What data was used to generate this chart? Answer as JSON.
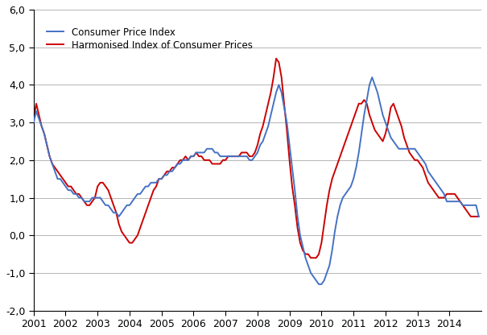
{
  "ylim": [
    -2.0,
    6.0
  ],
  "yticks": [
    -2.0,
    -1.0,
    0.0,
    1.0,
    2.0,
    3.0,
    4.0,
    5.0,
    6.0
  ],
  "ytick_labels": [
    "-2,0",
    "-1,0",
    "0,0",
    "1,0",
    "2,0",
    "3,0",
    "4,0",
    "5,0",
    "6,0"
  ],
  "xtick_years": [
    2001,
    2002,
    2003,
    2004,
    2005,
    2006,
    2007,
    2008,
    2009,
    2010,
    2011,
    2012,
    2013,
    2014
  ],
  "cpi_color": "#4472C4",
  "hicp_color": "#CC0000",
  "line_width": 1.4,
  "cpi_label": "Consumer Price Index",
  "hicp_label": "Harmonised Index of Consumer Prices",
  "cpi_data": [
    3.0,
    3.3,
    3.1,
    2.9,
    2.7,
    2.4,
    2.1,
    1.9,
    1.7,
    1.5,
    1.5,
    1.4,
    1.3,
    1.2,
    1.2,
    1.1,
    1.1,
    1.0,
    1.0,
    0.9,
    0.9,
    0.9,
    1.0,
    1.0,
    1.0,
    1.0,
    0.9,
    0.8,
    0.8,
    0.7,
    0.6,
    0.6,
    0.5,
    0.6,
    0.7,
    0.8,
    0.8,
    0.9,
    1.0,
    1.1,
    1.1,
    1.2,
    1.3,
    1.3,
    1.4,
    1.4,
    1.4,
    1.5,
    1.5,
    1.6,
    1.6,
    1.7,
    1.7,
    1.8,
    1.9,
    1.9,
    2.0,
    2.0,
    2.0,
    2.1,
    2.1,
    2.2,
    2.2,
    2.2,
    2.2,
    2.3,
    2.3,
    2.3,
    2.2,
    2.2,
    2.1,
    2.1,
    2.1,
    2.1,
    2.1,
    2.1,
    2.1,
    2.1,
    2.1,
    2.1,
    2.1,
    2.0,
    2.0,
    2.1,
    2.2,
    2.4,
    2.5,
    2.7,
    2.9,
    3.2,
    3.5,
    3.8,
    4.0,
    3.8,
    3.4,
    3.0,
    2.4,
    1.8,
    1.2,
    0.5,
    0.0,
    -0.3,
    -0.6,
    -0.8,
    -1.0,
    -1.1,
    -1.2,
    -1.3,
    -1.3,
    -1.2,
    -1.0,
    -0.8,
    -0.4,
    0.1,
    0.5,
    0.8,
    1.0,
    1.1,
    1.2,
    1.3,
    1.5,
    1.8,
    2.2,
    2.7,
    3.2,
    3.6,
    4.0,
    4.2,
    4.0,
    3.8,
    3.5,
    3.2,
    3.0,
    2.8,
    2.6,
    2.5,
    2.4,
    2.3,
    2.3,
    2.3,
    2.3,
    2.3,
    2.3,
    2.3,
    2.2,
    2.1,
    2.0,
    1.9,
    1.7,
    1.6,
    1.5,
    1.4,
    1.3,
    1.2,
    1.1,
    0.9,
    0.9,
    0.9,
    0.9,
    0.9,
    0.9,
    0.8,
    0.8,
    0.8,
    0.8,
    0.8,
    0.8,
    0.5
  ],
  "hicp_data": [
    3.1,
    3.5,
    3.2,
    2.9,
    2.7,
    2.4,
    2.1,
    1.9,
    1.8,
    1.7,
    1.6,
    1.5,
    1.4,
    1.3,
    1.3,
    1.2,
    1.1,
    1.1,
    1.0,
    0.9,
    0.8,
    0.8,
    0.9,
    1.0,
    1.3,
    1.4,
    1.4,
    1.3,
    1.2,
    1.0,
    0.8,
    0.6,
    0.3,
    0.1,
    0.0,
    -0.1,
    -0.2,
    -0.2,
    -0.1,
    0.0,
    0.2,
    0.4,
    0.6,
    0.8,
    1.0,
    1.2,
    1.3,
    1.5,
    1.5,
    1.6,
    1.7,
    1.7,
    1.8,
    1.8,
    1.9,
    2.0,
    2.0,
    2.1,
    2.0,
    2.1,
    2.1,
    2.2,
    2.1,
    2.1,
    2.0,
    2.0,
    2.0,
    1.9,
    1.9,
    1.9,
    1.9,
    2.0,
    2.0,
    2.1,
    2.1,
    2.1,
    2.1,
    2.1,
    2.2,
    2.2,
    2.2,
    2.1,
    2.1,
    2.2,
    2.4,
    2.7,
    2.9,
    3.2,
    3.5,
    3.8,
    4.2,
    4.7,
    4.6,
    4.2,
    3.5,
    2.8,
    2.0,
    1.3,
    0.8,
    0.2,
    -0.2,
    -0.4,
    -0.5,
    -0.5,
    -0.6,
    -0.6,
    -0.6,
    -0.5,
    -0.2,
    0.3,
    0.8,
    1.2,
    1.5,
    1.7,
    1.9,
    2.1,
    2.3,
    2.5,
    2.7,
    2.9,
    3.1,
    3.3,
    3.5,
    3.5,
    3.6,
    3.5,
    3.2,
    3.0,
    2.8,
    2.7,
    2.6,
    2.5,
    2.7,
    3.0,
    3.4,
    3.5,
    3.3,
    3.1,
    2.9,
    2.6,
    2.4,
    2.2,
    2.1,
    2.0,
    2.0,
    1.9,
    1.8,
    1.6,
    1.4,
    1.3,
    1.2,
    1.1,
    1.0,
    1.0,
    1.0,
    1.1,
    1.1,
    1.1,
    1.1,
    1.0,
    0.9,
    0.8,
    0.7,
    0.6,
    0.5,
    0.5,
    0.5,
    0.5
  ]
}
